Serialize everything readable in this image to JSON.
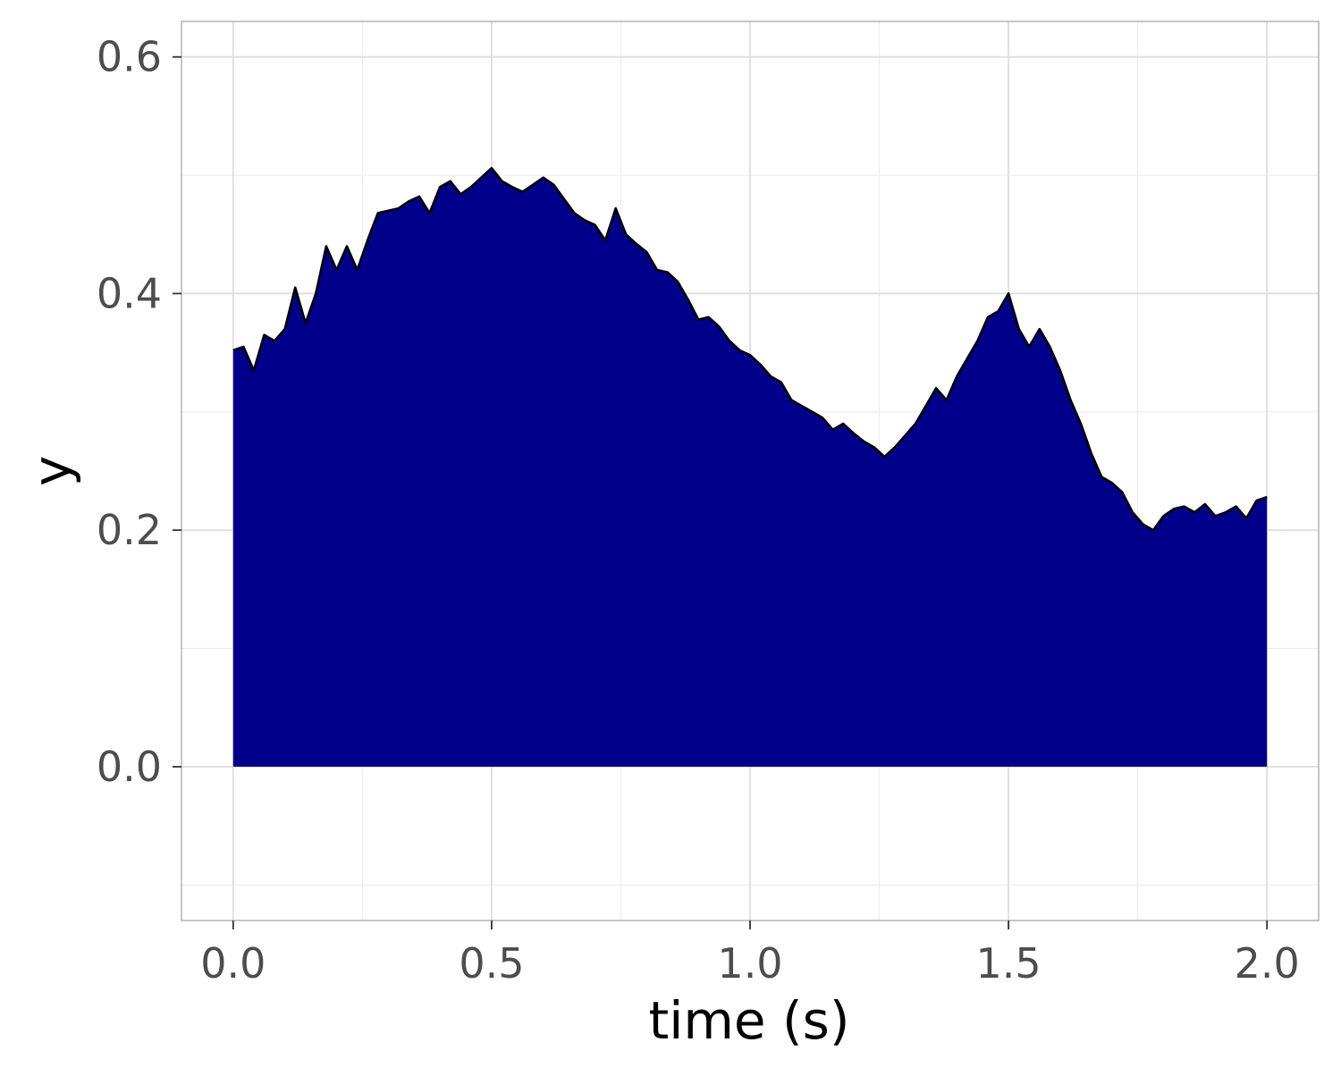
{
  "chart_data": {
    "type": "area",
    "title": "",
    "xlabel": "time (s)",
    "ylabel": "y",
    "xlim": [
      -0.1,
      2.1
    ],
    "ylim": [
      -0.13,
      0.63
    ],
    "x_ticks": [
      0.0,
      0.5,
      1.0,
      1.5,
      2.0
    ],
    "x_tick_labels": [
      "0.0",
      "0.5",
      "1.0",
      "1.5",
      "2.0"
    ],
    "y_ticks": [
      0.0,
      0.2,
      0.4,
      0.6
    ],
    "y_tick_labels": [
      "0.0",
      "0.2",
      "0.4",
      "0.6"
    ],
    "grid": true,
    "legend": "none",
    "fill_color": "#00008B",
    "line_color": "#000000",
    "panel_border_color": "#b3b3b3",
    "grid_color": "#dedede",
    "series": [
      {
        "x": [
          0.0,
          0.02,
          0.04,
          0.06,
          0.08,
          0.1,
          0.12,
          0.14,
          0.16,
          0.18,
          0.2,
          0.22,
          0.24,
          0.26,
          0.28,
          0.3,
          0.32,
          0.34,
          0.36,
          0.38,
          0.4,
          0.42,
          0.44,
          0.46,
          0.48,
          0.5,
          0.52,
          0.54,
          0.56,
          0.58,
          0.6,
          0.62,
          0.64,
          0.66,
          0.68,
          0.7,
          0.72,
          0.74,
          0.76,
          0.78,
          0.8,
          0.82,
          0.84,
          0.86,
          0.88,
          0.9,
          0.92,
          0.94,
          0.96,
          0.98,
          1.0,
          1.02,
          1.04,
          1.06,
          1.08,
          1.1,
          1.12,
          1.14,
          1.16,
          1.18,
          1.2,
          1.22,
          1.24,
          1.26,
          1.28,
          1.3,
          1.32,
          1.34,
          1.36,
          1.38,
          1.4,
          1.42,
          1.44,
          1.46,
          1.48,
          1.5,
          1.52,
          1.54,
          1.56,
          1.58,
          1.6,
          1.62,
          1.64,
          1.66,
          1.68,
          1.7,
          1.72,
          1.74,
          1.76,
          1.78,
          1.8,
          1.82,
          1.84,
          1.86,
          1.88,
          1.9,
          1.92,
          1.94,
          1.96,
          1.98,
          2.0
        ],
        "y": [
          0.352,
          0.355,
          0.335,
          0.365,
          0.36,
          0.37,
          0.405,
          0.375,
          0.4,
          0.44,
          0.42,
          0.44,
          0.42,
          0.445,
          0.468,
          0.47,
          0.472,
          0.478,
          0.482,
          0.468,
          0.49,
          0.495,
          0.484,
          0.49,
          0.498,
          0.506,
          0.495,
          0.49,
          0.486,
          0.492,
          0.498,
          0.492,
          0.48,
          0.468,
          0.462,
          0.458,
          0.445,
          0.472,
          0.45,
          0.442,
          0.435,
          0.42,
          0.418,
          0.41,
          0.395,
          0.378,
          0.38,
          0.372,
          0.36,
          0.352,
          0.348,
          0.34,
          0.33,
          0.325,
          0.31,
          0.305,
          0.3,
          0.295,
          0.285,
          0.29,
          0.282,
          0.275,
          0.27,
          0.262,
          0.27,
          0.28,
          0.29,
          0.305,
          0.32,
          0.31,
          0.33,
          0.345,
          0.36,
          0.38,
          0.385,
          0.4,
          0.37,
          0.355,
          0.37,
          0.355,
          0.335,
          0.31,
          0.29,
          0.265,
          0.245,
          0.24,
          0.232,
          0.215,
          0.205,
          0.2,
          0.212,
          0.218,
          0.22,
          0.215,
          0.222,
          0.212,
          0.215,
          0.22,
          0.21,
          0.225,
          0.228
        ]
      }
    ]
  }
}
